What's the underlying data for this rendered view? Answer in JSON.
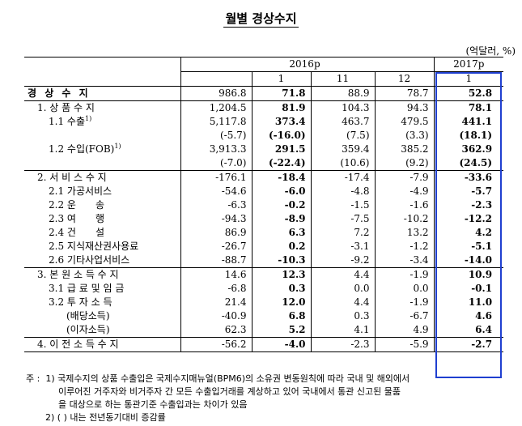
{
  "title": "월별 경상수지",
  "unit": "(억달러, %)",
  "header": {
    "year_2016": "2016p",
    "year_2017": "2017p",
    "months": [
      "",
      "1",
      "11",
      "12",
      "1"
    ]
  },
  "rows": [
    {
      "label": "경 상 수 지",
      "values": [
        "986.8",
        "71.8",
        "88.9",
        "78.7",
        "52.8"
      ],
      "bold": true
    },
    {
      "label": "1. 상 품 수 지",
      "values": [
        "1,204.5",
        "81.9",
        "104.3",
        "94.3",
        "78.1"
      ]
    },
    {
      "label": "1.1 수출",
      "sup": "1)",
      "values": [
        "5,117.8",
        "373.4",
        "463.7",
        "479.5",
        "441.1"
      ]
    },
    {
      "label": "",
      "values": [
        "(-5.7)",
        "(-16.0)",
        "(7.5)",
        "(3.3)",
        "(18.1)"
      ]
    },
    {
      "label": "1.2 수입(FOB)",
      "sup": "1)",
      "values": [
        "3,913.3",
        "291.5",
        "359.4",
        "385.2",
        "362.9"
      ]
    },
    {
      "label": "",
      "values": [
        "(-7.0)",
        "(-22.4)",
        "(10.6)",
        "(9.2)",
        "(24.5)"
      ]
    },
    {
      "label": "2. 서 비 스 수 지",
      "values": [
        "-176.1",
        "-18.4",
        "-17.4",
        "-7.9",
        "-33.6"
      ]
    },
    {
      "label": "2.1 가공서비스",
      "values": [
        "-54.6",
        "-6.0",
        "-4.8",
        "-4.9",
        "-5.7"
      ]
    },
    {
      "label": "2.2 운　　송",
      "values": [
        "-6.3",
        "-0.2",
        "-1.5",
        "-1.6",
        "-2.3"
      ]
    },
    {
      "label": "2.3 여　　행",
      "values": [
        "-94.3",
        "-8.9",
        "-7.5",
        "-10.2",
        "-12.2"
      ]
    },
    {
      "label": "2.4 건　　설",
      "values": [
        "86.9",
        "6.3",
        "7.2",
        "13.2",
        "4.2"
      ]
    },
    {
      "label": "2.5 지식재산권사용료",
      "values": [
        "-26.7",
        "0.2",
        "-3.1",
        "-1.2",
        "-5.1"
      ]
    },
    {
      "label": "2.6 기타사업서비스",
      "values": [
        "-88.7",
        "-10.3",
        "-9.2",
        "-3.4",
        "-14.0"
      ]
    },
    {
      "label": "3. 본 원 소 득 수 지",
      "values": [
        "14.6",
        "12.3",
        "4.4",
        "-1.9",
        "10.9"
      ]
    },
    {
      "label": "3.1 급 료 및 임 금",
      "values": [
        "-6.8",
        "0.3",
        "0.0",
        "0.0",
        "-0.1"
      ]
    },
    {
      "label": "3.2 투 자 소 득",
      "values": [
        "21.4",
        "12.0",
        "4.4",
        "-1.9",
        "11.0"
      ]
    },
    {
      "label": "(배당소득)",
      "values": [
        "-40.9",
        "6.8",
        "0.3",
        "-6.7",
        "4.6"
      ]
    },
    {
      "label": "(이자소득)",
      "values": [
        "62.3",
        "5.2",
        "4.1",
        "4.9",
        "6.4"
      ]
    },
    {
      "label": "4. 이 전 소 득 수 지",
      "values": [
        "-56.2",
        "-4.0",
        "-2.3",
        "-5.9",
        "-2.7"
      ]
    }
  ],
  "notes": {
    "prefix": "주",
    "n1_num": "1)",
    "n1_line1": "국제수지의 상품 수출입은 국제수지매뉴얼(BPM6)의 소유권 변동원칙에 따라 국내 및 해외에서",
    "n1_line2": "이루어진 거주자와 비거주자 간 모든 수출입거래를 계상하고 있어 국내에서 통관 신고된 물품",
    "n1_line3": "을 대상으로 하는 통관기준 수출입과는 차이가 있음",
    "n2_num": "2)",
    "n2_text": "(  ) 내는 전년동기대비 증감률"
  }
}
